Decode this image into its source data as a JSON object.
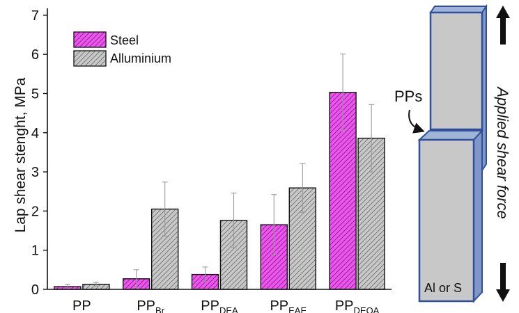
{
  "chart_data": {
    "type": "bar",
    "title": "",
    "ylabel": "Lap shear stenght, MPa",
    "xlabel": "",
    "ylim": [
      0,
      7.2
    ],
    "yticks": [
      0,
      1,
      2,
      3,
      4,
      5,
      6,
      7
    ],
    "categories": [
      {
        "base": "PP",
        "sub": ""
      },
      {
        "base": "PP",
        "sub": "Br"
      },
      {
        "base": "PP",
        "sub": "DEA"
      },
      {
        "base": "PP",
        "sub": "EAE"
      },
      {
        "base": "PP",
        "sub": "DEOA"
      }
    ],
    "series": [
      {
        "name": "Steel",
        "color": "#ee55ee",
        "hatch": "#7a1f86",
        "values": [
          0.07,
          0.27,
          0.38,
          1.65,
          5.03
        ],
        "errors": [
          0.06,
          0.23,
          0.19,
          0.77,
          0.98
        ]
      },
      {
        "name": "Alluminium",
        "color": "#c8c8c8",
        "hatch": "#6e6e6e",
        "values": [
          0.13,
          2.05,
          1.76,
          2.59,
          3.86
        ],
        "errors": [
          0.05,
          0.69,
          0.7,
          0.62,
          0.86
        ]
      }
    ],
    "legend": "top-left"
  },
  "diagram": {
    "label_pps": "PPs",
    "label_force": "Applied shear force",
    "label_material": "Al or S"
  }
}
